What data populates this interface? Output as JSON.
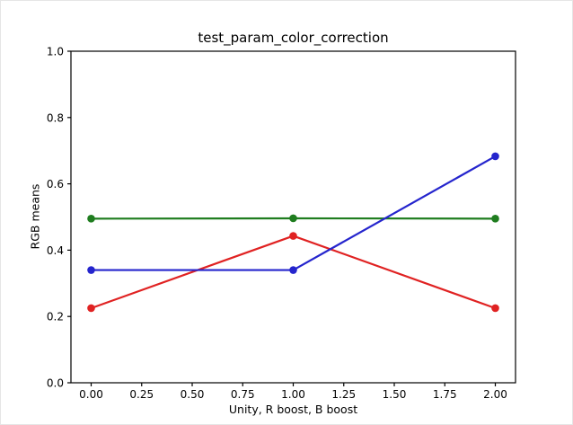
{
  "figure": {
    "background": "#ffffff",
    "spine_color": "#000000"
  },
  "chart_data": {
    "type": "line",
    "title": "test_param_color_correction",
    "xlabel": "Unity, R boost, B boost",
    "ylabel": "RGB means",
    "x": [
      0.0,
      1.0,
      2.0
    ],
    "series": [
      {
        "name": "red",
        "color": "#e02222",
        "values": [
          0.225,
          0.443,
          0.225
        ]
      },
      {
        "name": "green",
        "color": "#1f7d1f",
        "values": [
          0.495,
          0.496,
          0.495
        ]
      },
      {
        "name": "blue",
        "color": "#2525cd",
        "values": [
          0.34,
          0.34,
          0.683
        ]
      }
    ],
    "marker": "o",
    "xlim": [
      -0.1,
      2.1
    ],
    "ylim": [
      0.0,
      1.0
    ],
    "xticks": [
      0.0,
      0.25,
      0.5,
      0.75,
      1.0,
      1.25,
      1.5,
      1.75,
      2.0
    ],
    "xtick_labels": [
      "0.00",
      "0.25",
      "0.50",
      "0.75",
      "1.00",
      "1.25",
      "1.50",
      "1.75",
      "2.00"
    ],
    "yticks": [
      0.0,
      0.2,
      0.4,
      0.6,
      0.8,
      1.0
    ],
    "ytick_labels": [
      "0.0",
      "0.2",
      "0.4",
      "0.6",
      "0.8",
      "1.0"
    ],
    "grid": false,
    "legend": "none"
  }
}
